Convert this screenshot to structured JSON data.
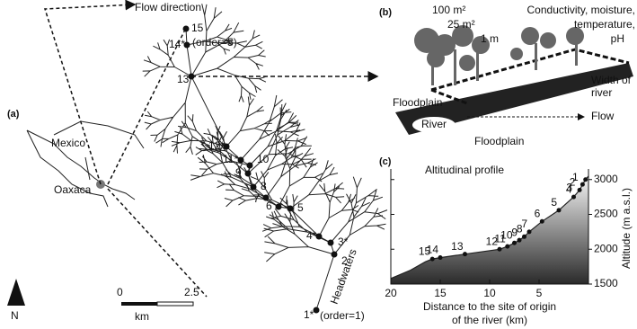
{
  "panel_a": {
    "label": "(a)",
    "flow_direction": "Flow direction",
    "country": "Mexico",
    "state": "Oaxaca",
    "north": "N",
    "scale": {
      "start": "0",
      "end": "2.5",
      "unit": "km"
    },
    "sites": [
      "1*",
      "2",
      "3*",
      "4*",
      "5",
      "6",
      "7",
      "8",
      "9",
      "10",
      "11*",
      "12*",
      "13",
      "14*",
      "15"
    ],
    "order_top": "(order=5)",
    "order_bottom": "(order=1)",
    "headwaters": "Headwaters"
  },
  "panel_b": {
    "label": "(b)",
    "area_100": "100 m²",
    "area_25": "25 m²",
    "area_1": "1 m",
    "measures": [
      "Conductivity, moisture,",
      "temperature,",
      "pH"
    ],
    "width": [
      "Width of",
      "river"
    ],
    "floodplain_top": "Floodplain",
    "river": "River",
    "floodplain_bottom": "Floodplain",
    "flow": "Flow"
  },
  "chart_data": {
    "type": "line",
    "label": "(c)",
    "title": "Altitudinal profile",
    "x_label": [
      "Distance to the site of origin",
      "of the river (km)"
    ],
    "y_label": "Altitude (m a.s.l.)",
    "xlim": [
      20,
      0
    ],
    "ylim": [
      1500,
      3100
    ],
    "xticks": [
      20,
      15,
      10,
      5
    ],
    "yticks": [
      1500,
      2000,
      2500,
      3000
    ],
    "series": [
      {
        "x": [
          20,
          18,
          16.5,
          15.8,
          15,
          12.5,
          9,
          8.2,
          7.5,
          7,
          6.5,
          6,
          4.7,
          3,
          1.5,
          0.9,
          0.6,
          0.3,
          0
        ],
        "values": [
          1580,
          1700,
          1820,
          1860,
          1880,
          1930,
          2000,
          2040,
          2090,
          2130,
          2180,
          2250,
          2400,
          2560,
          2750,
          2850,
          2930,
          3000,
          3050
        ],
        "color": "#222222"
      },
      {
        "x": [
          0.3,
          0.6,
          0.9,
          1.5,
          3,
          4.7,
          6,
          6.5,
          7,
          7.5,
          8.2,
          9,
          12.5,
          15,
          15.8
        ],
        "values": [
          3000,
          2930,
          2850,
          2750,
          2560,
          2400,
          2250,
          2180,
          2130,
          2090,
          2040,
          2000,
          1930,
          1880,
          1860
        ],
        "labels": [
          "1",
          "2",
          "3",
          "4",
          "5",
          "6",
          "7",
          "8",
          "9",
          "10",
          "11",
          "12",
          "13",
          "14",
          "15"
        ],
        "color": "#111111"
      }
    ]
  }
}
